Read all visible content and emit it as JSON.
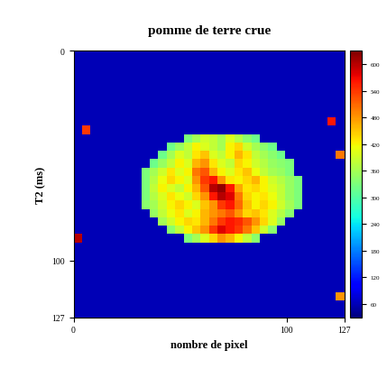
{
  "chart_data": {
    "type": "heatmap",
    "title": "pomme de terre crue",
    "x_label": "nombre de pixel",
    "y_label": "T2 (ms)",
    "xlim": [
      0,
      127
    ],
    "ylim": [
      127,
      0
    ],
    "xticks": [
      0,
      100,
      127
    ],
    "yticks": [
      0,
      100,
      127
    ],
    "colorbar_range": [
      30,
      630
    ],
    "colorbar_ticks": [
      60,
      120,
      180,
      240,
      300,
      360,
      420,
      480,
      540,
      600
    ],
    "cells": [
      [
        60,
        60,
        60,
        60,
        60,
        60,
        60,
        60,
        60,
        60,
        60,
        60,
        60,
        60,
        60,
        60,
        60,
        60,
        60,
        60,
        60,
        60,
        60,
        60,
        60,
        60,
        60,
        60,
        60,
        60,
        60,
        60
      ],
      [
        60,
        60,
        60,
        60,
        60,
        60,
        60,
        60,
        60,
        60,
        60,
        60,
        60,
        60,
        60,
        60,
        60,
        60,
        60,
        60,
        60,
        60,
        60,
        60,
        60,
        60,
        60,
        60,
        60,
        60,
        60,
        60
      ],
      [
        60,
        60,
        60,
        60,
        60,
        60,
        60,
        60,
        60,
        60,
        60,
        60,
        60,
        60,
        60,
        60,
        60,
        60,
        60,
        60,
        60,
        60,
        60,
        60,
        60,
        60,
        60,
        60,
        60,
        60,
        60,
        60
      ],
      [
        60,
        60,
        60,
        60,
        60,
        60,
        60,
        60,
        60,
        60,
        60,
        60,
        60,
        60,
        60,
        60,
        60,
        60,
        60,
        60,
        60,
        60,
        60,
        60,
        60,
        60,
        60,
        60,
        60,
        60,
        60,
        60
      ],
      [
        60,
        60,
        60,
        60,
        60,
        60,
        60,
        60,
        60,
        60,
        60,
        60,
        60,
        60,
        60,
        60,
        60,
        60,
        60,
        60,
        60,
        60,
        60,
        60,
        60,
        60,
        60,
        60,
        60,
        60,
        60,
        60
      ],
      [
        60,
        60,
        60,
        60,
        60,
        60,
        60,
        60,
        60,
        60,
        60,
        60,
        60,
        60,
        60,
        60,
        60,
        60,
        60,
        60,
        60,
        60,
        60,
        60,
        60,
        60,
        60,
        60,
        60,
        60,
        60,
        60
      ],
      [
        60,
        60,
        60,
        60,
        60,
        60,
        60,
        60,
        60,
        60,
        60,
        60,
        60,
        60,
        60,
        60,
        60,
        60,
        60,
        60,
        60,
        60,
        60,
        60,
        60,
        60,
        60,
        60,
        60,
        60,
        60,
        60
      ],
      [
        60,
        60,
        60,
        60,
        60,
        60,
        60,
        60,
        60,
        60,
        60,
        60,
        60,
        60,
        60,
        60,
        60,
        60,
        60,
        60,
        60,
        60,
        60,
        60,
        60,
        60,
        60,
        60,
        60,
        60,
        60,
        60
      ],
      [
        60,
        60,
        60,
        60,
        60,
        60,
        60,
        60,
        60,
        60,
        60,
        60,
        60,
        60,
        60,
        60,
        60,
        60,
        60,
        60,
        60,
        60,
        60,
        60,
        60,
        60,
        60,
        60,
        60,
        60,
        560,
        60
      ],
      [
        60,
        540,
        60,
        60,
        60,
        60,
        60,
        60,
        60,
        60,
        60,
        60,
        60,
        60,
        60,
        60,
        60,
        60,
        60,
        60,
        60,
        60,
        60,
        60,
        60,
        60,
        60,
        60,
        60,
        60,
        60,
        60
      ],
      [
        60,
        60,
        60,
        60,
        60,
        60,
        60,
        60,
        60,
        60,
        60,
        60,
        60,
        330,
        360,
        390,
        380,
        360,
        400,
        370,
        340,
        320,
        60,
        60,
        60,
        60,
        60,
        60,
        60,
        60,
        60,
        60
      ],
      [
        60,
        60,
        60,
        60,
        60,
        60,
        60,
        60,
        60,
        60,
        60,
        320,
        350,
        380,
        420,
        400,
        380,
        360,
        420,
        440,
        390,
        360,
        340,
        320,
        60,
        60,
        60,
        60,
        60,
        60,
        60,
        60
      ],
      [
        60,
        60,
        60,
        60,
        60,
        60,
        60,
        60,
        60,
        60,
        320,
        360,
        400,
        380,
        430,
        450,
        400,
        380,
        420,
        460,
        430,
        380,
        360,
        340,
        320,
        60,
        60,
        60,
        60,
        60,
        60,
        500
      ],
      [
        60,
        60,
        60,
        60,
        60,
        60,
        60,
        60,
        60,
        320,
        350,
        380,
        420,
        400,
        460,
        480,
        430,
        400,
        380,
        440,
        420,
        390,
        370,
        350,
        340,
        330,
        60,
        60,
        60,
        60,
        60,
        60
      ],
      [
        60,
        60,
        60,
        60,
        60,
        60,
        60,
        60,
        330,
        360,
        390,
        430,
        400,
        420,
        500,
        520,
        460,
        420,
        400,
        430,
        450,
        410,
        380,
        360,
        350,
        330,
        60,
        60,
        60,
        60,
        60,
        60
      ],
      [
        60,
        60,
        60,
        60,
        60,
        60,
        60,
        60,
        330,
        370,
        410,
        440,
        420,
        400,
        480,
        540,
        560,
        480,
        430,
        420,
        440,
        460,
        420,
        390,
        370,
        350,
        330,
        60,
        60,
        60,
        60,
        60
      ],
      [
        60,
        60,
        60,
        60,
        60,
        60,
        60,
        60,
        330,
        380,
        420,
        400,
        380,
        420,
        460,
        520,
        600,
        620,
        560,
        470,
        430,
        440,
        420,
        400,
        380,
        350,
        330,
        60,
        60,
        60,
        60,
        60
      ],
      [
        60,
        60,
        60,
        60,
        60,
        60,
        60,
        60,
        330,
        370,
        400,
        430,
        410,
        390,
        440,
        480,
        560,
        600,
        580,
        500,
        440,
        420,
        430,
        410,
        380,
        350,
        330,
        60,
        60,
        60,
        60,
        60
      ],
      [
        60,
        60,
        60,
        60,
        60,
        60,
        60,
        60,
        340,
        360,
        390,
        420,
        440,
        420,
        400,
        450,
        480,
        540,
        560,
        510,
        450,
        420,
        440,
        420,
        390,
        360,
        330,
        60,
        60,
        60,
        60,
        60
      ],
      [
        60,
        60,
        60,
        60,
        60,
        60,
        60,
        60,
        60,
        350,
        380,
        410,
        430,
        400,
        420,
        460,
        480,
        500,
        520,
        480,
        440,
        450,
        430,
        400,
        370,
        340,
        60,
        60,
        60,
        60,
        60,
        60
      ],
      [
        60,
        60,
        60,
        60,
        60,
        60,
        60,
        60,
        60,
        60,
        360,
        390,
        420,
        440,
        430,
        460,
        500,
        540,
        560,
        550,
        520,
        480,
        440,
        400,
        350,
        60,
        60,
        60,
        60,
        60,
        60,
        60
      ],
      [
        60,
        60,
        60,
        60,
        60,
        60,
        60,
        60,
        60,
        60,
        60,
        340,
        380,
        420,
        450,
        480,
        540,
        580,
        560,
        540,
        500,
        450,
        390,
        340,
        60,
        60,
        60,
        60,
        60,
        60,
        60,
        60
      ],
      [
        600,
        60,
        60,
        60,
        60,
        60,
        60,
        60,
        60,
        60,
        60,
        60,
        60,
        330,
        360,
        400,
        440,
        480,
        460,
        420,
        380,
        340,
        60,
        60,
        60,
        60,
        60,
        60,
        60,
        60,
        60,
        60
      ],
      [
        60,
        60,
        60,
        60,
        60,
        60,
        60,
        60,
        60,
        60,
        60,
        60,
        60,
        60,
        60,
        60,
        60,
        60,
        60,
        60,
        60,
        60,
        60,
        60,
        60,
        60,
        60,
        60,
        60,
        60,
        60,
        60
      ],
      [
        60,
        60,
        60,
        60,
        60,
        60,
        60,
        60,
        60,
        60,
        60,
        60,
        60,
        60,
        60,
        60,
        60,
        60,
        60,
        60,
        60,
        60,
        60,
        60,
        60,
        60,
        60,
        60,
        60,
        60,
        60,
        60
      ],
      [
        60,
        60,
        60,
        60,
        60,
        60,
        60,
        60,
        60,
        60,
        60,
        60,
        60,
        60,
        60,
        60,
        60,
        60,
        60,
        60,
        60,
        60,
        60,
        60,
        60,
        60,
        60,
        60,
        60,
        60,
        60,
        60
      ],
      [
        60,
        60,
        60,
        60,
        60,
        60,
        60,
        60,
        60,
        60,
        60,
        60,
        60,
        60,
        60,
        60,
        60,
        60,
        60,
        60,
        60,
        60,
        60,
        60,
        60,
        60,
        60,
        60,
        60,
        60,
        60,
        60
      ],
      [
        60,
        60,
        60,
        60,
        60,
        60,
        60,
        60,
        60,
        60,
        60,
        60,
        60,
        60,
        60,
        60,
        60,
        60,
        60,
        60,
        60,
        60,
        60,
        60,
        60,
        60,
        60,
        60,
        60,
        60,
        60,
        60
      ],
      [
        60,
        60,
        60,
        60,
        60,
        60,
        60,
        60,
        60,
        60,
        60,
        60,
        60,
        60,
        60,
        60,
        60,
        60,
        60,
        60,
        60,
        60,
        60,
        60,
        60,
        60,
        60,
        60,
        60,
        60,
        60,
        60
      ],
      [
        60,
        60,
        60,
        60,
        60,
        60,
        60,
        60,
        60,
        60,
        60,
        60,
        60,
        60,
        60,
        60,
        60,
        60,
        60,
        60,
        60,
        60,
        60,
        60,
        60,
        60,
        60,
        60,
        60,
        60,
        60,
        480
      ],
      [
        60,
        60,
        60,
        60,
        60,
        60,
        60,
        60,
        60,
        60,
        60,
        60,
        60,
        60,
        60,
        60,
        60,
        60,
        60,
        60,
        60,
        60,
        60,
        60,
        60,
        60,
        60,
        60,
        60,
        60,
        60,
        60
      ],
      [
        60,
        60,
        60,
        60,
        60,
        60,
        60,
        60,
        60,
        60,
        60,
        60,
        60,
        60,
        60,
        60,
        60,
        60,
        60,
        60,
        60,
        60,
        60,
        60,
        60,
        60,
        60,
        60,
        60,
        60,
        60,
        60
      ]
    ]
  }
}
